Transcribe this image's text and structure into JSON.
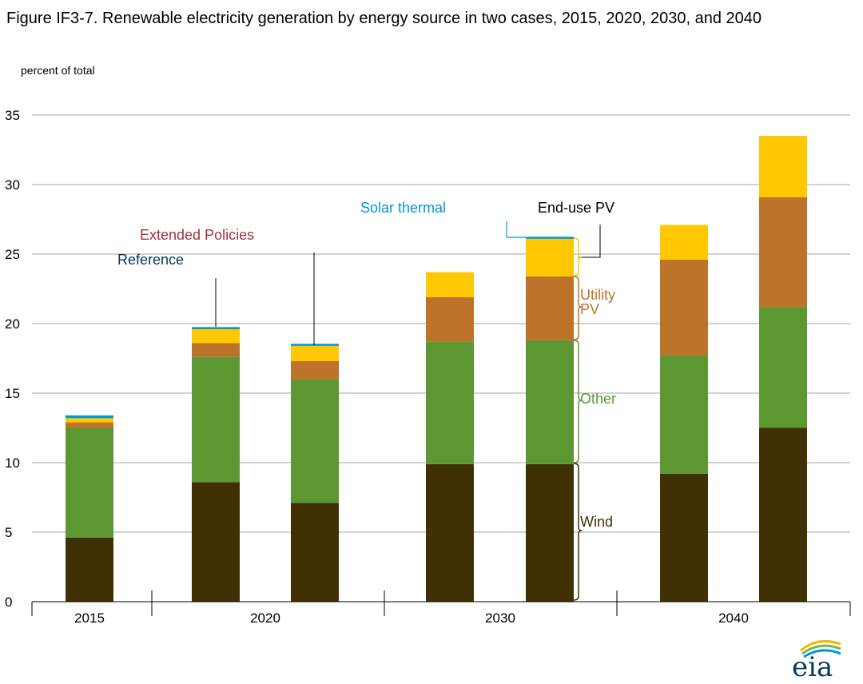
{
  "title": "Figure IF3-7. Renewable electricity generation by energy source in two cases, 2015, 2020, 2030, and 2040",
  "unit_label": "percent of total",
  "logo_text": "eia",
  "colors": {
    "wind": "#3f3104",
    "other": "#5d9732",
    "utility_pv": "#bd732a",
    "end_use_pv": "#ffc800",
    "solar_thermal": "#0096d7",
    "extended_policies": "#a33340",
    "reference": "#003953",
    "grid": "#a6a6a6"
  },
  "annotations": {
    "solar_thermal": "Solar thermal",
    "end_use_pv": "End-use PV",
    "extended_policies": "Extended Policies",
    "reference": "Reference",
    "utility_pv_line1": "Utility",
    "utility_pv_line2": "PV",
    "other": "Other",
    "wind": "Wind"
  },
  "chart_data": {
    "type": "bar",
    "stacked": true,
    "ylim": [
      0,
      35
    ],
    "yticks": [
      0,
      5,
      10,
      15,
      20,
      25,
      30,
      35
    ],
    "grid": true,
    "groups": [
      "2015",
      "2020",
      "2030",
      "2040"
    ],
    "bars": [
      {
        "group": "2015",
        "case": "",
        "wind": 4.6,
        "other": 7.9,
        "utility_pv": 0.4,
        "end_use_pv": 0.3,
        "solar_thermal": 0.2
      },
      {
        "group": "2020",
        "case": "Reference",
        "wind": 8.6,
        "other": 9.0,
        "utility_pv": 1.0,
        "end_use_pv": 1.0,
        "solar_thermal": 0.15
      },
      {
        "group": "2020",
        "case": "Extended Policies",
        "wind": 7.1,
        "other": 8.9,
        "utility_pv": 1.3,
        "end_use_pv": 1.1,
        "solar_thermal": 0.15
      },
      {
        "group": "2030",
        "case": "Reference",
        "wind": 9.9,
        "other": 8.8,
        "utility_pv": 3.2,
        "end_use_pv": 1.8,
        "solar_thermal": 0.0
      },
      {
        "group": "2030",
        "case": "Extended Policies",
        "wind": 9.9,
        "other": 8.9,
        "utility_pv": 4.6,
        "end_use_pv": 2.7,
        "solar_thermal": 0.1
      },
      {
        "group": "2040",
        "case": "Reference",
        "wind": 9.2,
        "other": 8.5,
        "utility_pv": 6.9,
        "end_use_pv": 2.5,
        "solar_thermal": 0.0
      },
      {
        "group": "2040",
        "case": "Extended Policies",
        "wind": 12.5,
        "other": 8.7,
        "utility_pv": 7.9,
        "end_use_pv": 4.4,
        "solar_thermal": 0.0
      }
    ],
    "series": [
      {
        "key": "wind",
        "name": "Wind"
      },
      {
        "key": "other",
        "name": "Other"
      },
      {
        "key": "utility_pv",
        "name": "Utility PV"
      },
      {
        "key": "end_use_pv",
        "name": "End-use PV"
      },
      {
        "key": "solar_thermal",
        "name": "Solar thermal"
      }
    ]
  }
}
